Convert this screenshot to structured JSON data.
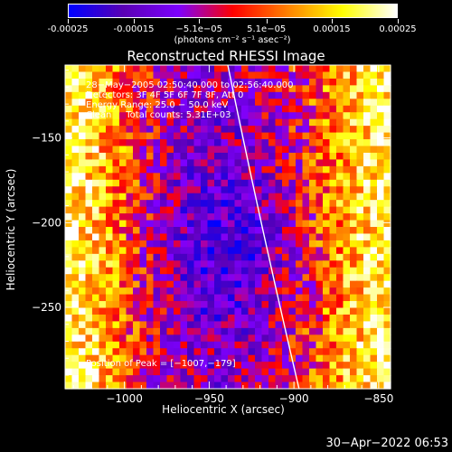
{
  "colorbar": {
    "ticks": [
      "-0.00025",
      "-0.00015",
      "−5.1e−05",
      "5.1e−05",
      "0.00015",
      "0.00025"
    ],
    "tick_values": [
      -0.00025,
      -0.00015,
      -5.1e-05,
      5.1e-05,
      0.00015,
      0.00025
    ],
    "range": [
      -0.00025,
      0.00025
    ],
    "unit": "(photons cm⁻² s⁻¹ asec⁻²)"
  },
  "chart_data": {
    "type": "heatmap",
    "title": "Reconstructed RHESSI Image",
    "xlabel": "Heliocentric X (arcsec)",
    "ylabel": "Heliocentric Y (arcsec)",
    "xlim": [
      -1035,
      -843
    ],
    "ylim": [
      -298,
      -107
    ],
    "xticks": [
      -1000,
      -950,
      -900,
      -850
    ],
    "xtick_labels": [
      "−1000",
      "−950",
      "−900",
      "−850"
    ],
    "yticks": [
      -250,
      -200,
      -150
    ],
    "ytick_labels": [
      "−250",
      "−200",
      "−150"
    ],
    "peak_position": [
      -1007,
      -179
    ],
    "limb_curve": [
      [
        -939,
        -107
      ],
      [
        -920,
        -200
      ],
      [
        -897,
        -298
      ]
    ],
    "colormap": [
      "#0000ff",
      "#5a00b4",
      "#7d00ff",
      "#ff0000",
      "#ff8000",
      "#ffff00",
      "#ffffff"
    ]
  },
  "annotations": {
    "line1": "28−May−2005 02:50:40.000 to 02:56:40.000",
    "line2": "Detectors: 3F 4F 5F 6F 7F 8F, Att 0",
    "line3": "Energy Range: 25.0 − 50.0 keV",
    "line4": "Clean     Total counts: 5.31E+03",
    "peak": "Position of Peak = [−1007,−179]"
  },
  "timestamp": "30−Apr−2022 06:53"
}
